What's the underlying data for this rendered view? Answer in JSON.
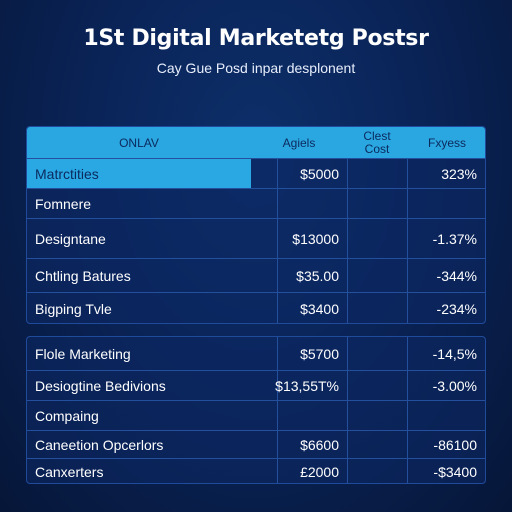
{
  "header": {
    "title": "1St Digital Marketetg Postsr",
    "subtitle": "Cay Gue Posd inpar desplonent"
  },
  "table": {
    "columns": {
      "name": "ONLAV",
      "agents": "Agiels",
      "client_line1": "Clest",
      "client_line2": "Cost",
      "expenses": "Fxyess"
    },
    "top_rows": [
      {
        "name": "Matrctities",
        "agents": "$5000",
        "client": "",
        "expenses": "323%"
      },
      {
        "name": "Fomnere",
        "agents": "",
        "client": "",
        "expenses": ""
      },
      {
        "name": "Designtane",
        "agents": "$13000",
        "client": "",
        "expenses": "-1.37%"
      },
      {
        "name": "Chtling Batures",
        "agents": "$35.00",
        "client": "",
        "expenses": "-344%"
      },
      {
        "name": "Bigping Tvle",
        "agents": "$3400",
        "client": "",
        "expenses": "-234%"
      }
    ],
    "bottom_rows": [
      {
        "name": "Flole Marketing",
        "agents": "$5700",
        "client": "",
        "expenses": "-14,5%"
      },
      {
        "name": "Desiogtine Bedivions",
        "agents": "$13,55T%",
        "client": "",
        "expenses": "-3.00%"
      },
      {
        "name": "Compaing",
        "agents": "",
        "client": "",
        "expenses": ""
      },
      {
        "name": "Caneetion Opcerlors",
        "agents": "$6600",
        "client": "",
        "expenses": "-86100"
      },
      {
        "name": "Canxerters",
        "agents": "£2000",
        "client": "",
        "expenses": "-$3400"
      }
    ]
  },
  "colors": {
    "background": "#0a2458",
    "header_accent": "#2aa6e0",
    "grid_line": "#234f9c"
  }
}
